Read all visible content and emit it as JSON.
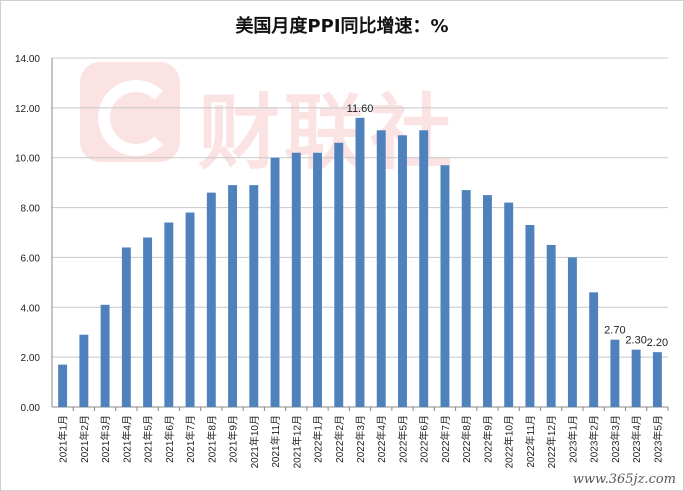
{
  "chart_data": {
    "type": "bar",
    "title": "美国月度PPI同比增速：%",
    "xlabel": "",
    "ylabel": "",
    "ylim": [
      0,
      14
    ],
    "yticks": [
      "0.00",
      "2.00",
      "4.00",
      "6.00",
      "8.00",
      "10.00",
      "12.00",
      "14.00"
    ],
    "grid": true,
    "bar_color": "#4f81bd",
    "categories": [
      "2021年1月",
      "2021年2月",
      "2021年3月",
      "2021年4月",
      "2021年5月",
      "2021年6月",
      "2021年7月",
      "2021年8月",
      "2021年9月",
      "2021年10月",
      "2021年11月",
      "2021年12月",
      "2022年1月",
      "2022年2月",
      "2022年3月",
      "2022年4月",
      "2022年5月",
      "2022年6月",
      "2022年7月",
      "2022年8月",
      "2022年9月",
      "2022年10月",
      "2022年11月",
      "2022年12月",
      "2023年1月",
      "2023年2月",
      "2023年3月",
      "2023年4月",
      "2023年5月"
    ],
    "values": [
      1.7,
      2.9,
      4.1,
      6.4,
      6.8,
      7.4,
      7.8,
      8.6,
      8.9,
      8.9,
      10.0,
      10.2,
      10.2,
      10.6,
      11.6,
      11.1,
      10.9,
      11.1,
      9.7,
      8.7,
      8.5,
      8.2,
      7.3,
      6.5,
      6.0,
      4.6,
      2.7,
      2.3,
      2.2
    ],
    "data_labels": [
      {
        "index": 14,
        "text": "11.60"
      },
      {
        "index": 26,
        "text": "2.70"
      },
      {
        "index": 27,
        "text": "2.30"
      },
      {
        "index": 28,
        "text": "2.20"
      }
    ]
  },
  "watermark": {
    "text": "财联社",
    "color": "#e0202a"
  },
  "site_mark": "www.365jz.com"
}
